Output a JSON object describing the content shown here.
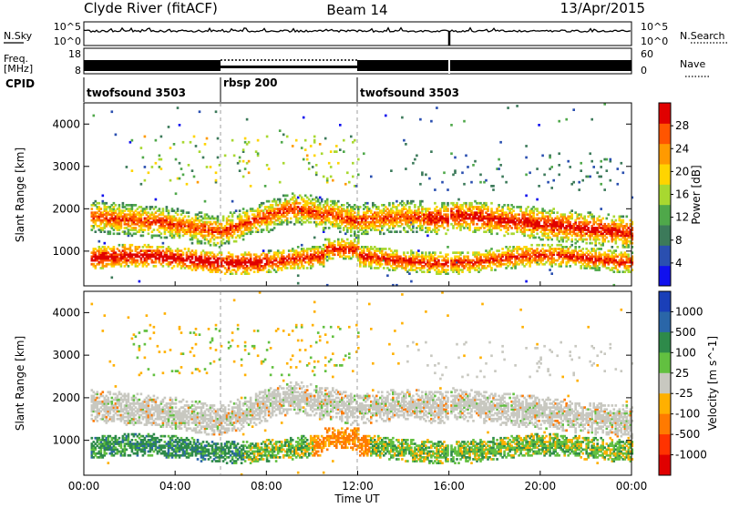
{
  "header": {
    "station": "Clyde River (fitACF)",
    "beam": "Beam 14",
    "date": "13/Apr/2015"
  },
  "noise_panel": {
    "left_label": "N.Sky",
    "right_label": "N.Search",
    "left_ticks": [
      "10^5",
      "10^0"
    ],
    "right_ticks": [
      "10^5",
      "10^0"
    ]
  },
  "freq_panel": {
    "left_label_1": "Freq.",
    "left_label_2": "[MHz]",
    "right_label": "Nave",
    "left_ticks": [
      "18",
      "8"
    ],
    "right_ticks": [
      "60",
      "0"
    ]
  },
  "cpid": {
    "label": "CPID",
    "segments": [
      {
        "name": "twofsound 3503",
        "start_hour": 0,
        "end_hour": 6
      },
      {
        "name": "rbsp 200",
        "start_hour": 6,
        "end_hour": 12
      },
      {
        "name": "twofsound 3503",
        "start_hour": 12,
        "end_hour": 24
      }
    ]
  },
  "time_axis": {
    "label": "Time UT",
    "ticks": [
      "00:00",
      "04:00",
      "08:00",
      "12:00",
      "16:00",
      "20:00",
      "00:00"
    ]
  },
  "chart_data": [
    {
      "type": "heatmap",
      "panel": "power",
      "xlabel": "Time UT",
      "ylabel": "Slant Range [km]",
      "xlim": [
        0,
        24
      ],
      "ylim": [
        180,
        4500
      ],
      "y_ticks": [
        1000,
        2000,
        3000,
        4000
      ],
      "colorbar_label": "Power [dB]",
      "colorbar_ticks": [
        "4",
        "8",
        "12",
        "16",
        "20",
        "24",
        "28"
      ],
      "colorbar_colors": [
        "#1010ee",
        "#2a4fb0",
        "#3c7a5a",
        "#4fa84a",
        "#a8d830",
        "#ffd400",
        "#ff9a00",
        "#ff5500",
        "#e00000"
      ],
      "bands": [
        {
          "t0": 0.5,
          "t1": 24,
          "r0": 1500,
          "r1": 2200,
          "note": "main echo band"
        },
        {
          "t0": 0.5,
          "t1": 24,
          "r0": 550,
          "r1": 1000,
          "note": "lower echo band"
        },
        {
          "t0": 1,
          "t1": 12,
          "r0": 2600,
          "r1": 3600,
          "note": "sparse upper echoes"
        }
      ]
    },
    {
      "type": "heatmap",
      "panel": "velocity",
      "xlabel": "Time UT",
      "ylabel": "Slant Range [km]",
      "xlim": [
        0,
        24
      ],
      "ylim": [
        180,
        4500
      ],
      "y_ticks": [
        1000,
        2000,
        3000,
        4000
      ],
      "colorbar_label": "Velocity [m s^-1]",
      "colorbar_ticks": [
        "1000",
        "500",
        "100",
        "25",
        "-25",
        "-100",
        "-500",
        "-1000"
      ],
      "colorbar_colors": [
        "#1a3fb8",
        "#2a66a8",
        "#2e8a4a",
        "#62c040",
        "#c8c8c0",
        "#ffb000",
        "#ff7a00",
        "#ff3300",
        "#e00000"
      ]
    }
  ]
}
